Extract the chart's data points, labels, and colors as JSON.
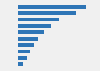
{
  "values": [
    10000,
    8500,
    6000,
    4800,
    3800,
    3000,
    2400,
    1800,
    1300,
    700
  ],
  "bar_color": "#2e75b6",
  "background_color": "#ffffff",
  "outer_background": "#f0f0f0",
  "xlim": [
    0,
    11500
  ],
  "n_bars": 10,
  "bar_height": 0.62,
  "figsize": [
    1.0,
    0.71
  ]
}
